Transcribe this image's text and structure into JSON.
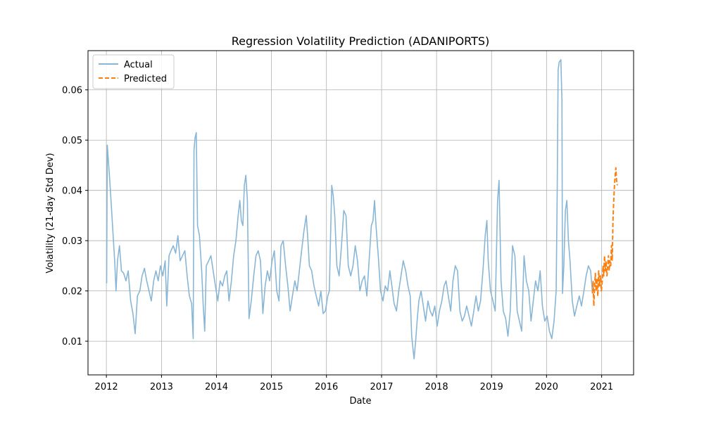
{
  "chart_data": {
    "type": "line",
    "title": "Regression Volatility Prediction (ADANIPORTS)",
    "xlabel": "Date",
    "ylabel": "Volatility (21-day Std Dev)",
    "xlim": [
      "2011-09-01",
      "2021-08-01"
    ],
    "ylim": [
      0.0033,
      0.0678
    ],
    "x_ticks": [
      "2012",
      "2013",
      "2014",
      "2015",
      "2016",
      "2017",
      "2018",
      "2019",
      "2020",
      "2021"
    ],
    "y_ticks": [
      0.01,
      0.02,
      0.03,
      0.04,
      0.05,
      0.06
    ],
    "y_tick_labels": [
      "0.01",
      "0.02",
      "0.03",
      "0.04",
      "0.05",
      "0.06"
    ],
    "grid": true,
    "legend_position": "top-left",
    "colors": {
      "actual": "#8ab6d6",
      "predicted": "#ff7f0e"
    },
    "series": [
      {
        "name": "Actual",
        "style": "solid",
        "color": "#8ab6d6",
        "points": [
          [
            "2012-01-03",
            0.0215
          ],
          [
            "2012-01-07",
            0.049
          ],
          [
            "2012-01-14",
            0.046
          ],
          [
            "2012-01-21",
            0.043
          ],
          [
            "2012-02-01",
            0.038
          ],
          [
            "2012-02-15",
            0.031
          ],
          [
            "2012-02-25",
            0.026
          ],
          [
            "2012-03-05",
            0.02
          ],
          [
            "2012-03-15",
            0.026
          ],
          [
            "2012-03-28",
            0.029
          ],
          [
            "2012-04-10",
            0.024
          ],
          [
            "2012-04-25",
            0.0235
          ],
          [
            "2012-05-10",
            0.022
          ],
          [
            "2012-05-25",
            0.024
          ],
          [
            "2012-06-10",
            0.018
          ],
          [
            "2012-06-25",
            0.0155
          ],
          [
            "2012-07-10",
            0.0115
          ],
          [
            "2012-07-25",
            0.019
          ],
          [
            "2012-08-10",
            0.02
          ],
          [
            "2012-08-25",
            0.023
          ],
          [
            "2012-09-10",
            0.0245
          ],
          [
            "2012-09-25",
            0.022
          ],
          [
            "2012-10-10",
            0.02
          ],
          [
            "2012-10-25",
            0.018
          ],
          [
            "2012-11-10",
            0.022
          ],
          [
            "2012-11-25",
            0.024
          ],
          [
            "2012-12-10",
            0.022
          ],
          [
            "2012-12-25",
            0.025
          ],
          [
            "2013-01-10",
            0.023
          ],
          [
            "2013-01-25",
            0.026
          ],
          [
            "2013-02-05",
            0.017
          ],
          [
            "2013-02-20",
            0.027
          ],
          [
            "2013-03-05",
            0.028
          ],
          [
            "2013-03-20",
            0.029
          ],
          [
            "2013-04-05",
            0.0275
          ],
          [
            "2013-04-20",
            0.031
          ],
          [
            "2013-05-05",
            0.026
          ],
          [
            "2013-05-20",
            0.027
          ],
          [
            "2013-06-05",
            0.028
          ],
          [
            "2013-06-20",
            0.023
          ],
          [
            "2013-07-05",
            0.019
          ],
          [
            "2013-07-20",
            0.0175
          ],
          [
            "2013-07-30",
            0.0105
          ],
          [
            "2013-08-05",
            0.048
          ],
          [
            "2013-08-12",
            0.0505
          ],
          [
            "2013-08-20",
            0.0515
          ],
          [
            "2013-08-28",
            0.033
          ],
          [
            "2013-09-10",
            0.031
          ],
          [
            "2013-09-25",
            0.024
          ],
          [
            "2013-10-05",
            0.017
          ],
          [
            "2013-10-15",
            0.012
          ],
          [
            "2013-10-25",
            0.025
          ],
          [
            "2013-11-10",
            0.026
          ],
          [
            "2013-11-25",
            0.027
          ],
          [
            "2013-12-10",
            0.024
          ],
          [
            "2013-12-25",
            0.021
          ],
          [
            "2014-01-10",
            0.018
          ],
          [
            "2014-01-25",
            0.022
          ],
          [
            "2014-02-10",
            0.021
          ],
          [
            "2014-02-25",
            0.023
          ],
          [
            "2014-03-10",
            0.024
          ],
          [
            "2014-03-25",
            0.018
          ],
          [
            "2014-04-10",
            0.022
          ],
          [
            "2014-04-25",
            0.027
          ],
          [
            "2014-05-10",
            0.03
          ],
          [
            "2014-05-25",
            0.035
          ],
          [
            "2014-06-05",
            0.038
          ],
          [
            "2014-06-15",
            0.034
          ],
          [
            "2014-06-25",
            0.033
          ],
          [
            "2014-07-05",
            0.041
          ],
          [
            "2014-07-15",
            0.043
          ],
          [
            "2014-07-25",
            0.038
          ],
          [
            "2014-08-05",
            0.0145
          ],
          [
            "2014-08-20",
            0.018
          ],
          [
            "2014-09-05",
            0.023
          ],
          [
            "2014-09-20",
            0.027
          ],
          [
            "2014-10-05",
            0.028
          ],
          [
            "2014-10-20",
            0.026
          ],
          [
            "2014-11-05",
            0.0155
          ],
          [
            "2014-11-20",
            0.021
          ],
          [
            "2014-12-05",
            0.024
          ],
          [
            "2014-12-20",
            0.022
          ],
          [
            "2015-01-05",
            0.026
          ],
          [
            "2015-01-20",
            0.028
          ],
          [
            "2015-02-05",
            0.02
          ],
          [
            "2015-02-20",
            0.018
          ],
          [
            "2015-03-05",
            0.029
          ],
          [
            "2015-03-20",
            0.03
          ],
          [
            "2015-04-05",
            0.025
          ],
          [
            "2015-04-20",
            0.021
          ],
          [
            "2015-05-05",
            0.016
          ],
          [
            "2015-05-20",
            0.019
          ],
          [
            "2015-06-05",
            0.022
          ],
          [
            "2015-06-20",
            0.02
          ],
          [
            "2015-07-05",
            0.024
          ],
          [
            "2015-07-20",
            0.028
          ],
          [
            "2015-08-05",
            0.032
          ],
          [
            "2015-08-20",
            0.035
          ],
          [
            "2015-08-31",
            0.03
          ],
          [
            "2015-09-10",
            0.025
          ],
          [
            "2015-09-25",
            0.024
          ],
          [
            "2015-10-10",
            0.021
          ],
          [
            "2015-10-25",
            0.019
          ],
          [
            "2015-11-10",
            0.017
          ],
          [
            "2015-11-25",
            0.02
          ],
          [
            "2015-12-10",
            0.0155
          ],
          [
            "2015-12-25",
            0.016
          ],
          [
            "2016-01-10",
            0.019
          ],
          [
            "2016-01-20",
            0.02
          ],
          [
            "2016-02-05",
            0.041
          ],
          [
            "2016-02-15",
            0.039
          ],
          [
            "2016-02-25",
            0.035
          ],
          [
            "2016-03-10",
            0.025
          ],
          [
            "2016-03-25",
            0.023
          ],
          [
            "2016-04-10",
            0.029
          ],
          [
            "2016-04-25",
            0.036
          ],
          [
            "2016-05-10",
            0.035
          ],
          [
            "2016-05-25",
            0.025
          ],
          [
            "2016-06-10",
            0.023
          ],
          [
            "2016-06-25",
            0.025
          ],
          [
            "2016-07-10",
            0.029
          ],
          [
            "2016-07-25",
            0.026
          ],
          [
            "2016-08-10",
            0.02
          ],
          [
            "2016-08-25",
            0.022
          ],
          [
            "2016-09-10",
            0.023
          ],
          [
            "2016-09-25",
            0.019
          ],
          [
            "2016-10-10",
            0.026
          ],
          [
            "2016-10-25",
            0.033
          ],
          [
            "2016-11-05",
            0.034
          ],
          [
            "2016-11-15",
            0.038
          ],
          [
            "2016-11-25",
            0.033
          ],
          [
            "2016-12-10",
            0.027
          ],
          [
            "2016-12-25",
            0.02
          ],
          [
            "2017-01-10",
            0.018
          ],
          [
            "2017-01-25",
            0.021
          ],
          [
            "2017-02-10",
            0.02
          ],
          [
            "2017-02-25",
            0.024
          ],
          [
            "2017-03-10",
            0.021
          ],
          [
            "2017-03-25",
            0.0175
          ],
          [
            "2017-04-10",
            0.016
          ],
          [
            "2017-04-25",
            0.02
          ],
          [
            "2017-05-10",
            0.023
          ],
          [
            "2017-05-25",
            0.026
          ],
          [
            "2017-06-10",
            0.024
          ],
          [
            "2017-06-25",
            0.021
          ],
          [
            "2017-07-10",
            0.019
          ],
          [
            "2017-07-20",
            0.011
          ],
          [
            "2017-07-30",
            0.008
          ],
          [
            "2017-08-05",
            0.0065
          ],
          [
            "2017-08-15",
            0.01
          ],
          [
            "2017-08-25",
            0.014
          ],
          [
            "2017-09-05",
            0.018
          ],
          [
            "2017-09-20",
            0.02
          ],
          [
            "2017-10-05",
            0.017
          ],
          [
            "2017-10-20",
            0.014
          ],
          [
            "2017-11-05",
            0.018
          ],
          [
            "2017-11-20",
            0.016
          ],
          [
            "2017-12-05",
            0.015
          ],
          [
            "2017-12-20",
            0.017
          ],
          [
            "2018-01-05",
            0.013
          ],
          [
            "2018-01-20",
            0.016
          ],
          [
            "2018-02-05",
            0.018
          ],
          [
            "2018-02-20",
            0.021
          ],
          [
            "2018-03-05",
            0.022
          ],
          [
            "2018-03-20",
            0.019
          ],
          [
            "2018-04-05",
            0.016
          ],
          [
            "2018-04-20",
            0.022
          ],
          [
            "2018-05-05",
            0.025
          ],
          [
            "2018-05-20",
            0.024
          ],
          [
            "2018-06-05",
            0.016
          ],
          [
            "2018-06-20",
            0.014
          ],
          [
            "2018-07-05",
            0.015
          ],
          [
            "2018-07-20",
            0.017
          ],
          [
            "2018-08-05",
            0.015
          ],
          [
            "2018-08-20",
            0.013
          ],
          [
            "2018-09-05",
            0.016
          ],
          [
            "2018-09-20",
            0.019
          ],
          [
            "2018-10-05",
            0.016
          ],
          [
            "2018-10-20",
            0.018
          ],
          [
            "2018-11-05",
            0.024
          ],
          [
            "2018-11-20",
            0.031
          ],
          [
            "2018-12-01",
            0.034
          ],
          [
            "2018-12-10",
            0.026
          ],
          [
            "2018-12-25",
            0.02
          ],
          [
            "2019-01-10",
            0.018
          ],
          [
            "2019-01-25",
            0.016
          ],
          [
            "2019-02-10",
            0.038
          ],
          [
            "2019-02-20",
            0.042
          ],
          [
            "2019-03-05",
            0.022
          ],
          [
            "2019-03-20",
            0.016
          ],
          [
            "2019-04-05",
            0.0145
          ],
          [
            "2019-04-20",
            0.011
          ],
          [
            "2019-05-05",
            0.016
          ],
          [
            "2019-05-20",
            0.029
          ],
          [
            "2019-06-05",
            0.027
          ],
          [
            "2019-06-20",
            0.016
          ],
          [
            "2019-07-05",
            0.014
          ],
          [
            "2019-07-20",
            0.012
          ],
          [
            "2019-08-05",
            0.027
          ],
          [
            "2019-08-20",
            0.022
          ],
          [
            "2019-09-05",
            0.02
          ],
          [
            "2019-09-20",
            0.014
          ],
          [
            "2019-10-05",
            0.018
          ],
          [
            "2019-10-20",
            0.022
          ],
          [
            "2019-11-05",
            0.02
          ],
          [
            "2019-11-20",
            0.024
          ],
          [
            "2019-12-05",
            0.017
          ],
          [
            "2019-12-20",
            0.014
          ],
          [
            "2020-01-05",
            0.015
          ],
          [
            "2020-01-20",
            0.012
          ],
          [
            "2020-02-05",
            0.0105
          ],
          [
            "2020-02-20",
            0.014
          ],
          [
            "2020-03-05",
            0.02
          ],
          [
            "2020-03-12",
            0.04
          ],
          [
            "2020-03-18",
            0.064
          ],
          [
            "2020-03-25",
            0.0655
          ],
          [
            "2020-04-05",
            0.066
          ],
          [
            "2020-04-12",
            0.058
          ],
          [
            "2020-04-16",
            0.0195
          ],
          [
            "2020-04-25",
            0.025
          ],
          [
            "2020-05-05",
            0.036
          ],
          [
            "2020-05-15",
            0.038
          ],
          [
            "2020-05-25",
            0.03
          ],
          [
            "2020-06-05",
            0.026
          ],
          [
            "2020-06-20",
            0.018
          ],
          [
            "2020-07-05",
            0.015
          ],
          [
            "2020-07-20",
            0.017
          ],
          [
            "2020-08-05",
            0.019
          ],
          [
            "2020-08-20",
            0.017
          ],
          [
            "2020-09-05",
            0.02
          ],
          [
            "2020-09-20",
            0.023
          ],
          [
            "2020-10-05",
            0.025
          ],
          [
            "2020-10-20",
            0.024
          ],
          [
            "2020-11-01",
            0.0195
          ]
        ]
      },
      {
        "name": "Predicted",
        "style": "dashed",
        "color": "#ff7f0e",
        "points": [
          [
            "2020-11-01",
            0.0195
          ],
          [
            "2020-11-05",
            0.022
          ],
          [
            "2020-11-10",
            0.017
          ],
          [
            "2020-11-15",
            0.021
          ],
          [
            "2020-11-20",
            0.0235
          ],
          [
            "2020-11-25",
            0.02
          ],
          [
            "2020-12-01",
            0.0225
          ],
          [
            "2020-12-06",
            0.019
          ],
          [
            "2020-12-12",
            0.024
          ],
          [
            "2020-12-18",
            0.021
          ],
          [
            "2020-12-24",
            0.023
          ],
          [
            "2020-12-30",
            0.02
          ],
          [
            "2021-01-05",
            0.022
          ],
          [
            "2021-01-10",
            0.025
          ],
          [
            "2021-01-15",
            0.023
          ],
          [
            "2021-01-20",
            0.027
          ],
          [
            "2021-01-25",
            0.024
          ],
          [
            "2021-01-30",
            0.026
          ],
          [
            "2021-02-05",
            0.023
          ],
          [
            "2021-02-10",
            0.025
          ],
          [
            "2021-02-15",
            0.027
          ],
          [
            "2021-02-20",
            0.024
          ],
          [
            "2021-02-25",
            0.026
          ],
          [
            "2021-03-02",
            0.025
          ],
          [
            "2021-03-07",
            0.029
          ],
          [
            "2021-03-12",
            0.026
          ],
          [
            "2021-03-17",
            0.034
          ],
          [
            "2021-03-22",
            0.038
          ],
          [
            "2021-03-27",
            0.041
          ],
          [
            "2021-04-01",
            0.043
          ],
          [
            "2021-04-05",
            0.0445
          ],
          [
            "2021-04-10",
            0.042
          ],
          [
            "2021-04-15",
            0.041
          ]
        ]
      }
    ]
  }
}
